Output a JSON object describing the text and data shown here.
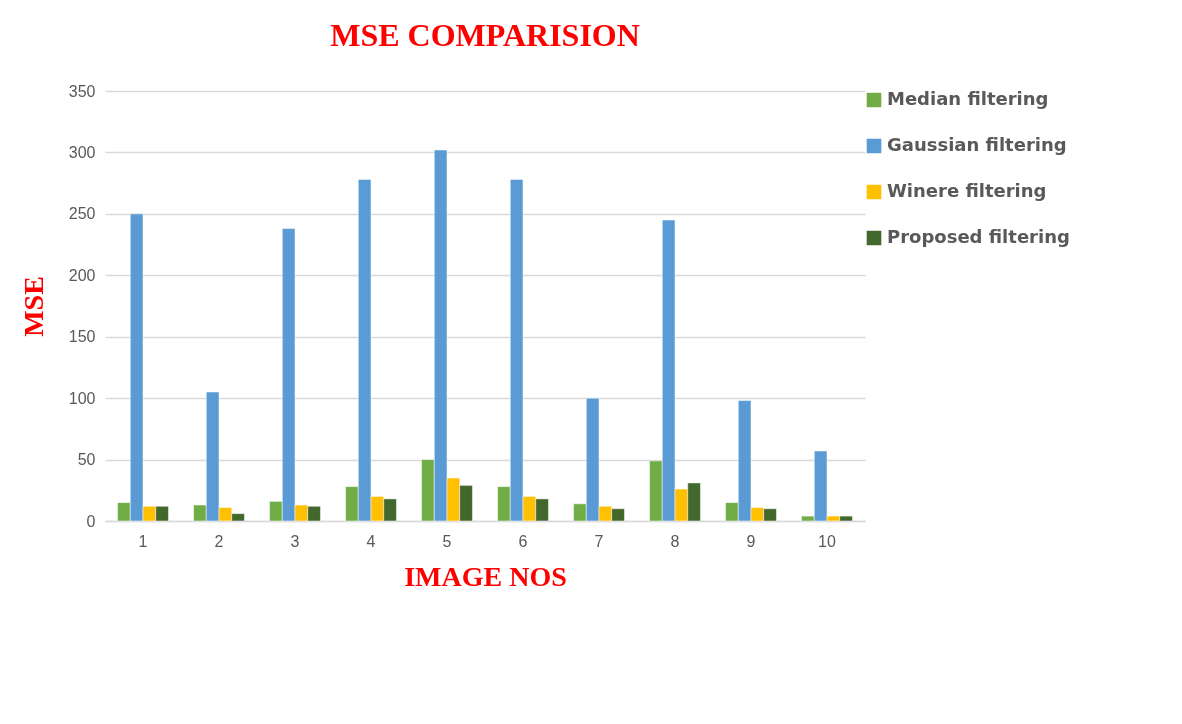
{
  "chart_data": {
    "type": "bar",
    "title": "MSE COMPARISION",
    "xlabel": "IMAGE NOS",
    "ylabel": "MSE",
    "categories": [
      "1",
      "2",
      "3",
      "4",
      "5",
      "6",
      "7",
      "8",
      "9",
      "10"
    ],
    "series": [
      {
        "name": "Median filtering",
        "color": "#70ad47",
        "values": [
          15,
          13,
          16,
          28,
          50,
          28,
          14,
          49,
          15,
          4
        ]
      },
      {
        "name": "Gaussian filtering",
        "color": "#5b9bd5",
        "values": [
          250,
          105,
          238,
          278,
          302,
          278,
          100,
          245,
          98,
          57
        ]
      },
      {
        "name": "Winere filtering",
        "color": "#ffc000",
        "values": [
          12,
          11,
          13,
          20,
          35,
          20,
          12,
          26,
          11,
          4
        ]
      },
      {
        "name": "Proposed filtering",
        "color": "#43682b",
        "values": [
          12,
          6,
          12,
          18,
          29,
          18,
          10,
          31,
          10,
          4
        ]
      }
    ],
    "ylim": [
      0,
      350
    ],
    "yticks": [
      0,
      50,
      100,
      150,
      200,
      250,
      300,
      350
    ],
    "grid": "y",
    "legend": "right"
  }
}
